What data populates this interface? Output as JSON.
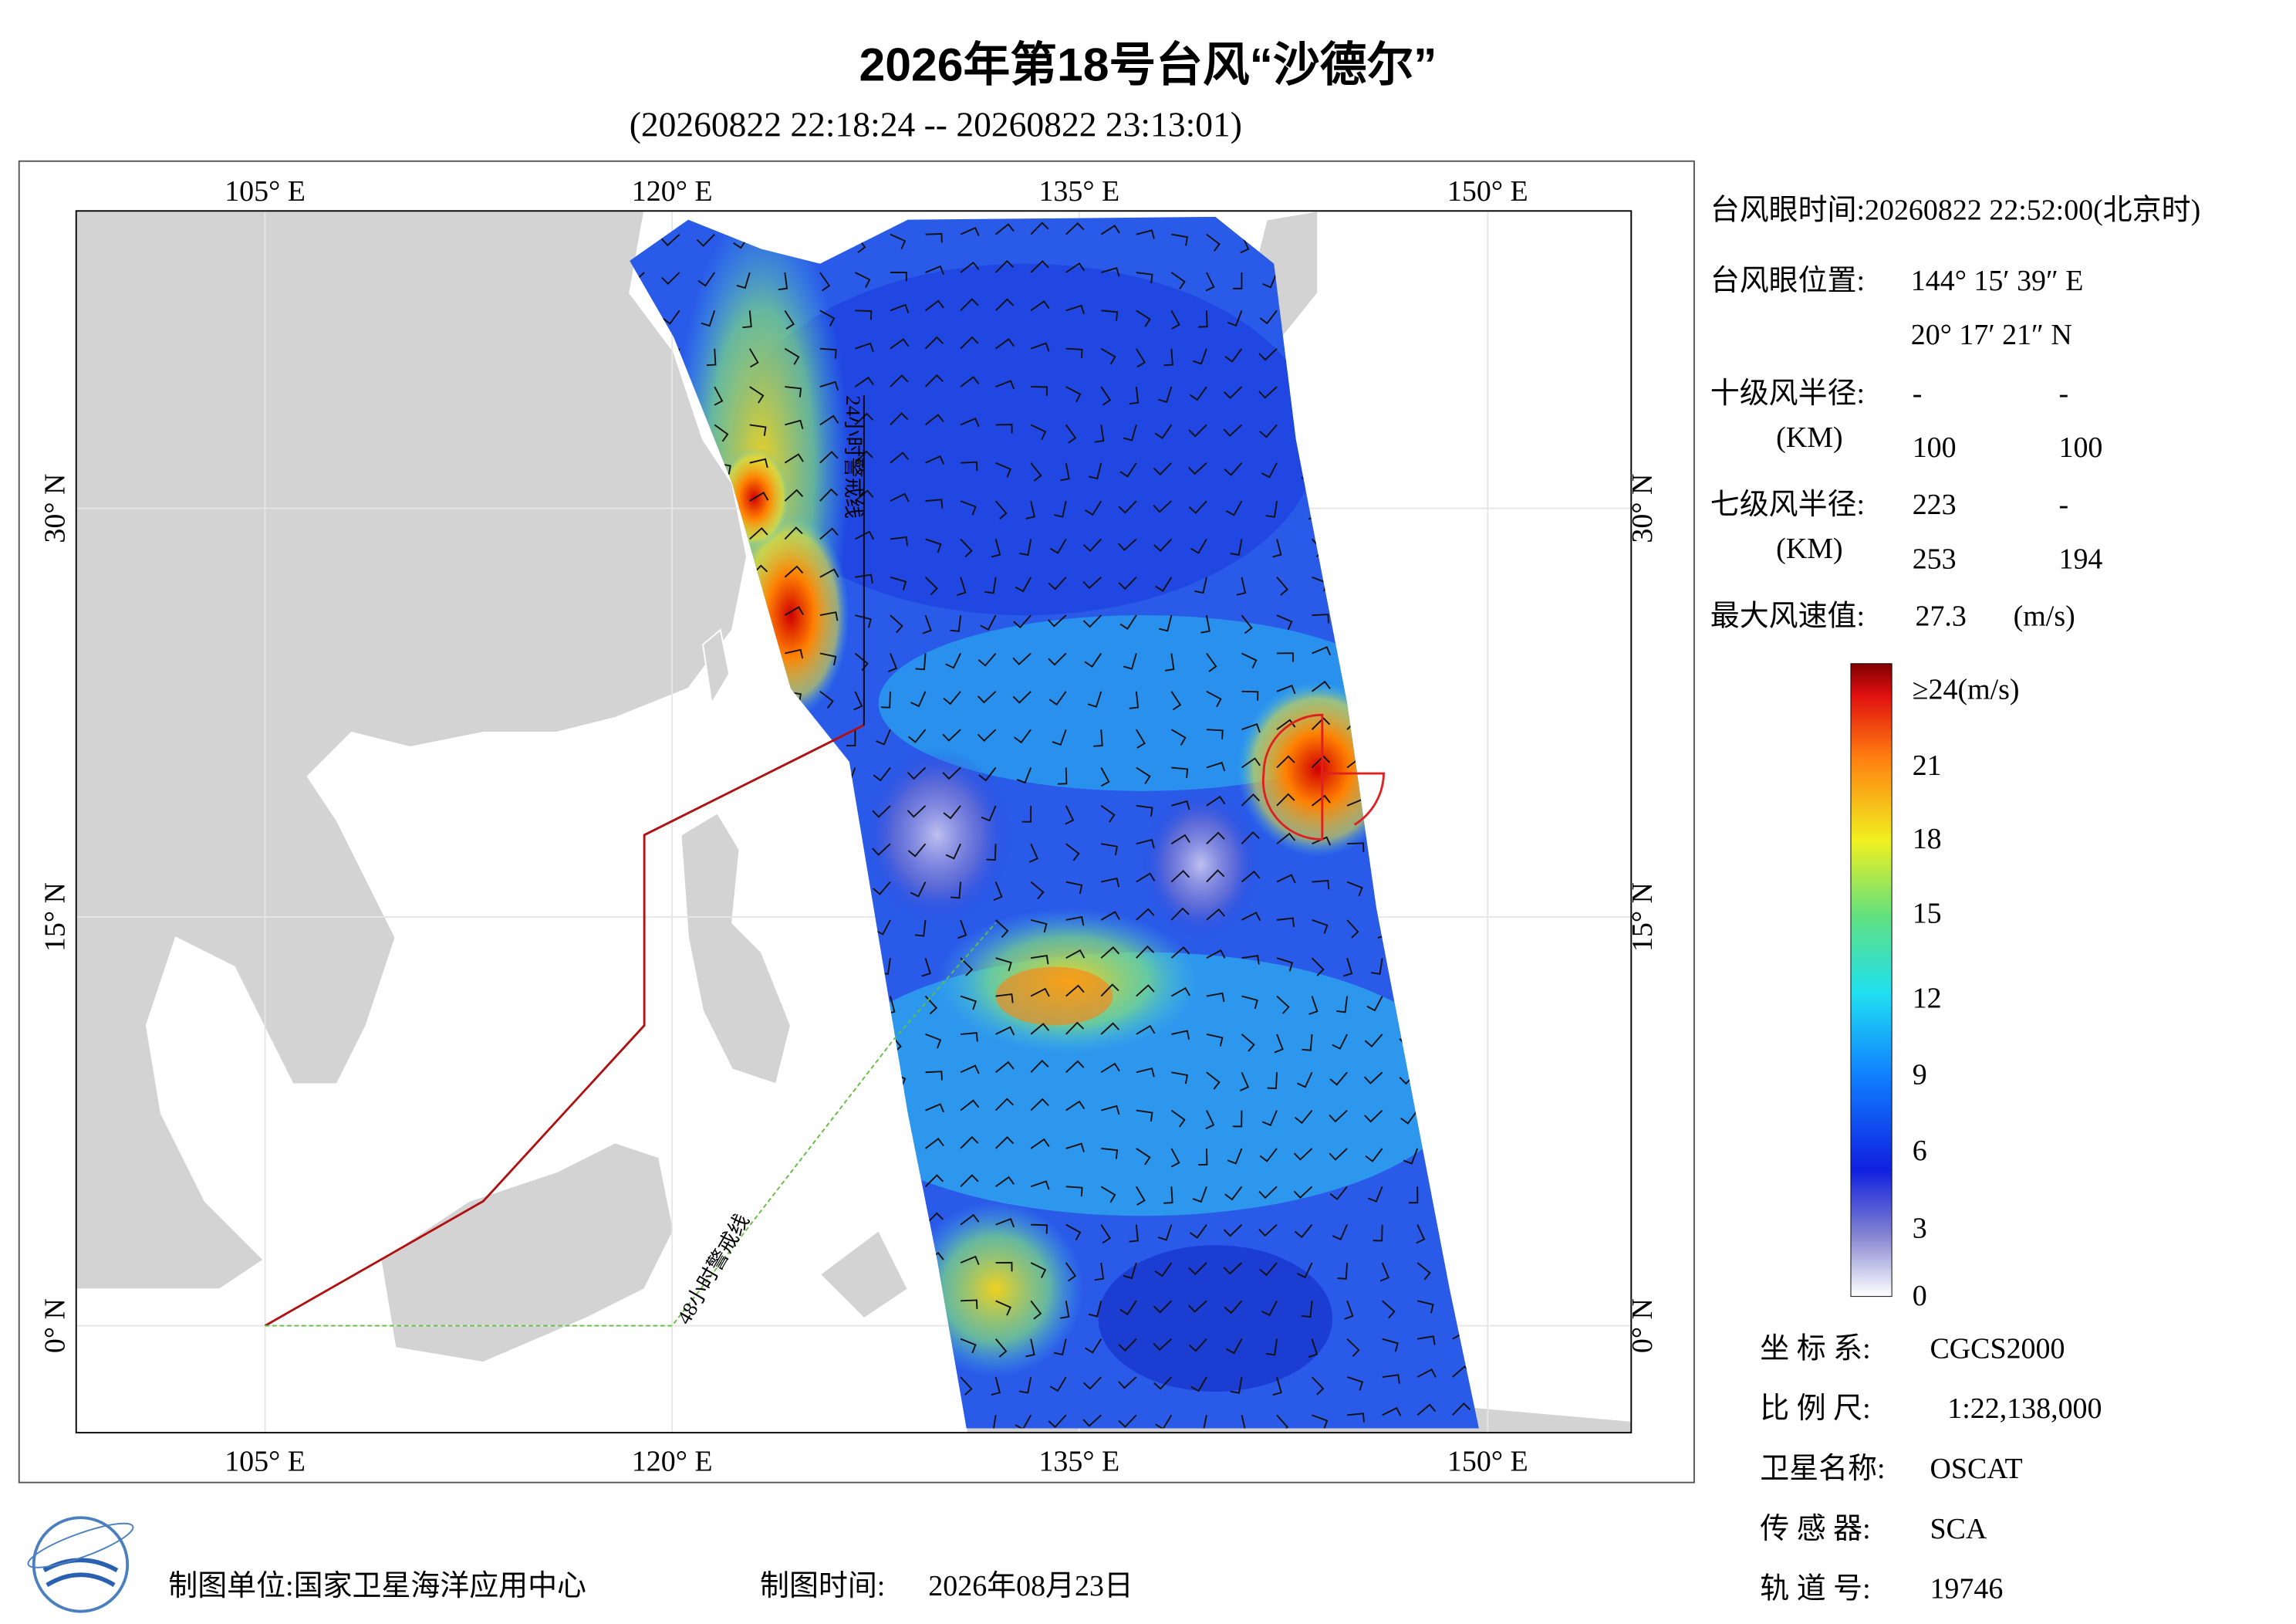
{
  "header": {
    "title": "2026年第18号台风“沙德尔”",
    "subtitle": "(20260822 22:18:24 -- 20260822 23:13:01)"
  },
  "map": {
    "top_x_labels": [
      "105° E",
      "120° E",
      "135° E",
      "150° E"
    ],
    "bottom_x_labels": [
      "105° E",
      "120° E",
      "135° E",
      "150° E"
    ],
    "left_y_labels": [
      "30° N",
      "15° N",
      "0° N"
    ],
    "right_y_labels": [
      "30° N",
      "15° N",
      "0° N"
    ],
    "annotations": [
      "24小时警戒线",
      "48小时警戒线"
    ]
  },
  "info": {
    "eye_time": "台风眼时间:20260822 22:52:00(北京时)",
    "eye_pos_label": "台风眼位置:",
    "eye_lon": "144° 15′ 39″ E",
    "eye_lat": "20° 17′ 21″ N",
    "r10_label": "十级风半径:",
    "r10": [
      "-",
      "-",
      "100",
      "100"
    ],
    "r10_unit": "(KM)",
    "r7_label": "七级风半径:",
    "r7": [
      "223",
      "-",
      "253",
      "194"
    ],
    "r7_unit": "(KM)",
    "max_label": "最大风速值:",
    "max_value": "27.3",
    "max_unit": "(m/s)"
  },
  "colorbar": {
    "labels": [
      "≥24(m/s)",
      "21",
      "18",
      "15",
      "12",
      "9",
      "6",
      "3",
      "0"
    ]
  },
  "meta": {
    "rows": [
      [
        "坐 标 系:",
        "CGCS2000"
      ],
      [
        "比 例 尺:",
        "1:22,138,000"
      ],
      [
        "卫星名称:",
        "OSCAT"
      ],
      [
        "传 感 器:",
        "SCA"
      ],
      [
        "轨 道 号:",
        "19746"
      ]
    ]
  },
  "footer": {
    "unit": "制图单位:国家卫星海洋应用中心",
    "time_label": "制图时间:",
    "time": "2026年08月23日"
  }
}
